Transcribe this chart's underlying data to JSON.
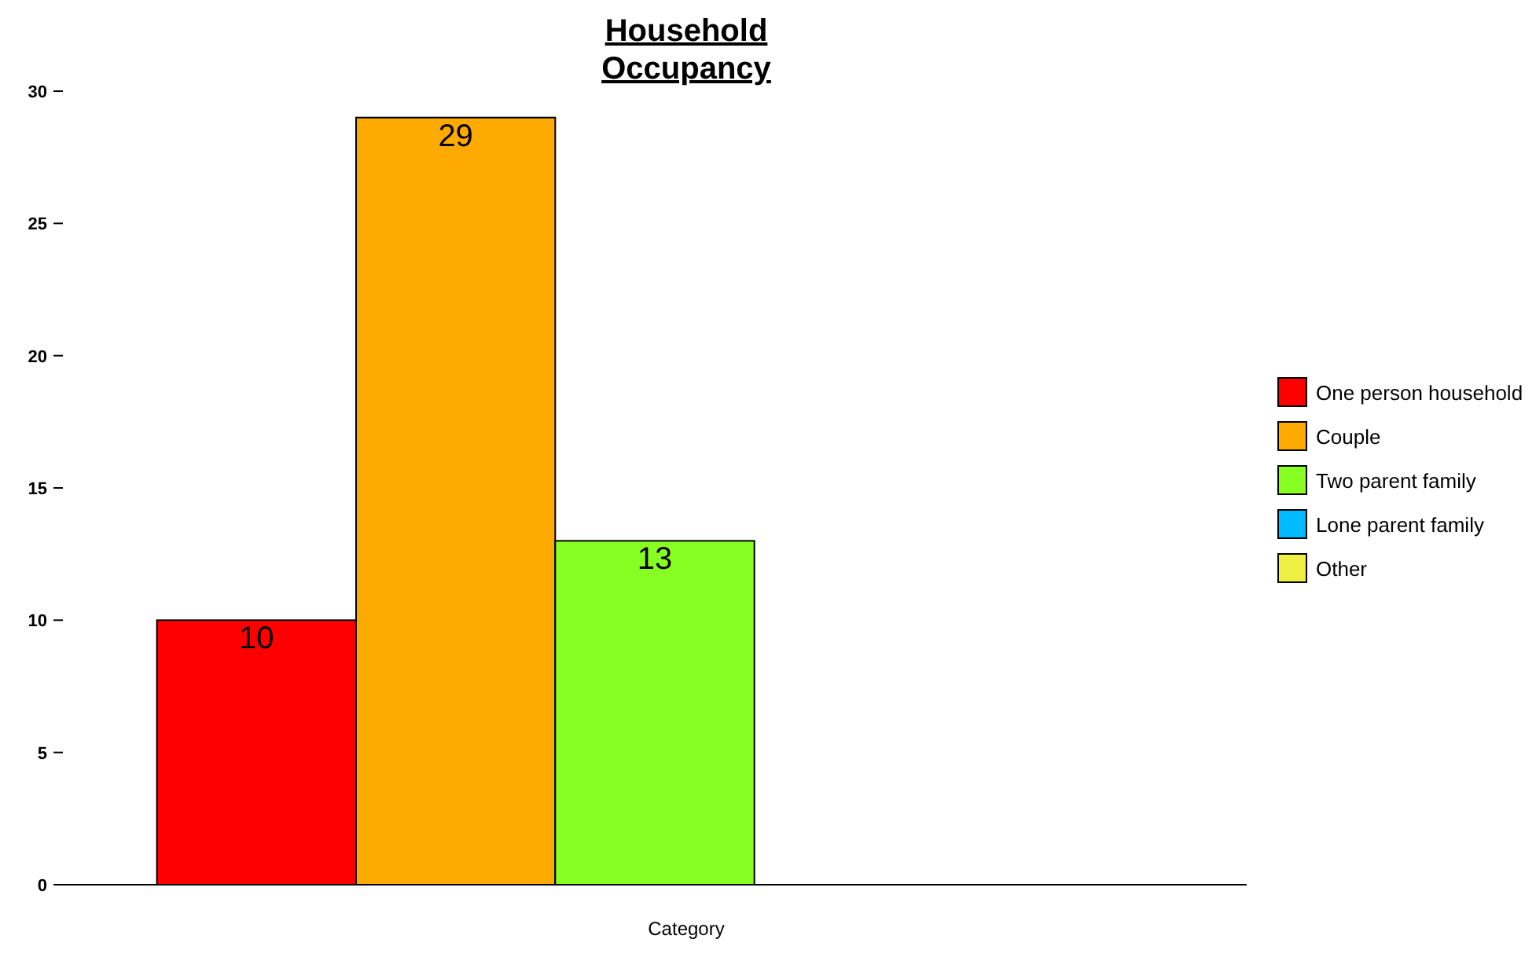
{
  "chart_data": {
    "type": "bar",
    "title": "Household Occupancy",
    "xlabel": "Category",
    "categories": [
      null
    ],
    "series": [
      {
        "name": "One person household",
        "color": "#ff0000",
        "values": [
          10
        ],
        "value_labels": [
          "10"
        ]
      },
      {
        "name": "Couple",
        "color": "#ffaa00",
        "values": [
          29
        ],
        "value_labels": [
          "29"
        ]
      },
      {
        "name": "Two parent family",
        "color": "#88ff22",
        "values": [
          13
        ],
        "value_labels": [
          "13"
        ]
      },
      {
        "name": "Lone parent family",
        "color": "#00bbff",
        "values": [
          0
        ],
        "value_labels": [
          null
        ]
      },
      {
        "name": "Other",
        "color": "#eeee44",
        "values": [
          0
        ],
        "value_labels": [
          null
        ]
      }
    ],
    "ylim": [
      0,
      30
    ],
    "yticks": [
      0,
      5,
      10,
      15,
      20,
      25,
      30
    ],
    "legend": "right"
  }
}
